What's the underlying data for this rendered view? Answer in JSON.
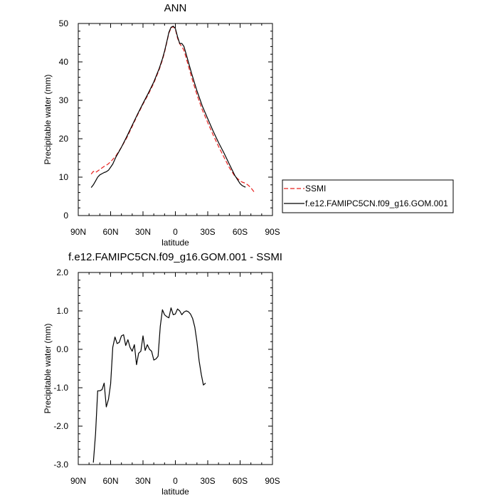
{
  "chart_data": [
    {
      "type": "line",
      "title": "ANN",
      "xlabel": "latitude",
      "ylabel": "Precipitable water (mm)",
      "xlim": [
        90,
        -90
      ],
      "ylim": [
        0,
        50
      ],
      "x_ticks": [
        90,
        60,
        30,
        0,
        -30,
        -60,
        -90
      ],
      "x_tick_labels": [
        "90N",
        "60N",
        "30N",
        "0",
        "30S",
        "60S",
        "90S"
      ],
      "y_ticks": [
        0,
        10,
        20,
        30,
        40,
        50
      ],
      "y_tick_labels": [
        "0",
        "10",
        "20",
        "30",
        "40",
        "50"
      ],
      "grid": false,
      "legend": {
        "placement": "right"
      },
      "series": [
        {
          "name": "SSMI",
          "color": "#e8201e",
          "dash": "dashed",
          "points": [
            [
              78,
              10.8
            ],
            [
              76,
              11.5
            ],
            [
              74,
              11.2
            ],
            [
              72,
              11.6
            ],
            [
              70,
              12.0
            ],
            [
              68,
              12.4
            ],
            [
              66,
              12.8
            ],
            [
              64,
              13.1
            ],
            [
              62,
              13.5
            ],
            [
              60,
              14.0
            ],
            [
              55,
              15.6
            ],
            [
              50,
              17.8
            ],
            [
              45,
              20.3
            ],
            [
              40,
              23.2
            ],
            [
              35,
              26.2
            ],
            [
              30,
              29.0
            ],
            [
              25,
              31.6
            ],
            [
              20,
              34.5
            ],
            [
              15,
              38.0
            ],
            [
              12,
              40.5
            ],
            [
              10,
              42.5
            ],
            [
              8,
              45.0
            ],
            [
              6,
              47.5
            ],
            [
              4,
              48.8
            ],
            [
              2,
              49.2
            ],
            [
              0,
              48.5
            ],
            [
              -2,
              46.2
            ],
            [
              -4,
              44.7
            ],
            [
              -6,
              44.0
            ],
            [
              -8,
              43.0
            ],
            [
              -10,
              41.0
            ],
            [
              -15,
              36.0
            ],
            [
              -20,
              31.5
            ],
            [
              -25,
              27.5
            ],
            [
              -30,
              24.2
            ],
            [
              -35,
              21.0
            ],
            [
              -40,
              18.0
            ],
            [
              -45,
              15.2
            ],
            [
              -50,
              12.5
            ],
            [
              -55,
              10.3
            ],
            [
              -60,
              9.0
            ],
            [
              -62,
              8.7
            ],
            [
              -65,
              8.4
            ],
            [
              -68,
              7.8
            ],
            [
              -70,
              7.2
            ],
            [
              -72,
              6.5
            ],
            [
              -74,
              5.8
            ]
          ]
        },
        {
          "name": "f.e12.FAMIPC5CN.f09_g16.GOM.001",
          "color": "#000000",
          "dash": "solid",
          "points": [
            [
              78,
              7.3
            ],
            [
              76,
              8.0
            ],
            [
              74,
              9.0
            ],
            [
              72,
              10.0
            ],
            [
              70,
              10.6
            ],
            [
              68,
              10.9
            ],
            [
              66,
              11.2
            ],
            [
              64,
              11.4
            ],
            [
              62,
              11.8
            ],
            [
              60,
              12.6
            ],
            [
              58,
              13.4
            ],
            [
              55,
              15.3
            ],
            [
              50,
              17.8
            ],
            [
              45,
              20.6
            ],
            [
              40,
              23.5
            ],
            [
              35,
              26.4
            ],
            [
              30,
              29.2
            ],
            [
              25,
              31.9
            ],
            [
              20,
              34.8
            ],
            [
              15,
              38.3
            ],
            [
              12,
              40.8
            ],
            [
              10,
              42.8
            ],
            [
              8,
              45.2
            ],
            [
              6,
              47.7
            ],
            [
              4,
              49.0
            ],
            [
              2,
              49.3
            ],
            [
              0,
              48.7
            ],
            [
              -2,
              46.6
            ],
            [
              -4,
              44.8
            ],
            [
              -6,
              44.8
            ],
            [
              -8,
              44.0
            ],
            [
              -10,
              42.0
            ],
            [
              -15,
              37.0
            ],
            [
              -20,
              32.5
            ],
            [
              -25,
              28.5
            ],
            [
              -30,
              25.2
            ],
            [
              -35,
              22.0
            ],
            [
              -40,
              19.0
            ],
            [
              -45,
              16.3
            ],
            [
              -50,
              13.4
            ],
            [
              -55,
              10.5
            ],
            [
              -60,
              8.3
            ],
            [
              -62,
              7.8
            ],
            [
              -64,
              7.5
            ],
            [
              -65,
              7.4
            ]
          ]
        }
      ]
    },
    {
      "type": "line",
      "title": "f.e12.FAMIPC5CN.f09_g16.GOM.001 - SSMI",
      "xlabel": "latitude",
      "ylabel": "Precipitable water (mm)",
      "xlim": [
        90,
        -90
      ],
      "ylim": [
        -3,
        2
      ],
      "x_ticks": [
        90,
        60,
        30,
        0,
        -30,
        -60,
        -90
      ],
      "x_tick_labels": [
        "90N",
        "60N",
        "30N",
        "0",
        "30S",
        "60S",
        "90S"
      ],
      "y_ticks": [
        -3,
        -2,
        -1,
        0,
        1,
        2
      ],
      "y_tick_labels": [
        "-3.0",
        "-2.0",
        "-1.0",
        "0.0",
        "1.0",
        "2.0"
      ],
      "grid": false,
      "series": [
        {
          "color": "#000000",
          "dash": "solid",
          "points": [
            [
              76,
              -2.95
            ],
            [
              74,
              -2.2
            ],
            [
              72,
              -1.08
            ],
            [
              70,
              -1.08
            ],
            [
              68,
              -1.05
            ],
            [
              66,
              -0.88
            ],
            [
              64,
              -1.5
            ],
            [
              62,
              -1.3
            ],
            [
              60,
              -0.9
            ],
            [
              58,
              0.05
            ],
            [
              56,
              0.32
            ],
            [
              54,
              0.15
            ],
            [
              52,
              0.18
            ],
            [
              50,
              0.35
            ],
            [
              48,
              0.38
            ],
            [
              46,
              0.1
            ],
            [
              44,
              0.25
            ],
            [
              42,
              0.05
            ],
            [
              40,
              -0.05
            ],
            [
              38,
              0.12
            ],
            [
              36,
              -0.4
            ],
            [
              34,
              -0.1
            ],
            [
              32,
              -0.05
            ],
            [
              30,
              0.35
            ],
            [
              28,
              -0.03
            ],
            [
              26,
              0.12
            ],
            [
              24,
              0.0
            ],
            [
              22,
              -0.05
            ],
            [
              20,
              -0.28
            ],
            [
              18,
              -0.25
            ],
            [
              16,
              -0.18
            ],
            [
              14,
              0.6
            ],
            [
              12,
              1.03
            ],
            [
              10,
              0.9
            ],
            [
              8,
              0.85
            ],
            [
              6,
              0.82
            ],
            [
              4,
              1.08
            ],
            [
              2,
              0.9
            ],
            [
              0,
              0.92
            ],
            [
              -2,
              1.05
            ],
            [
              -4,
              1.0
            ],
            [
              -6,
              0.9
            ],
            [
              -8,
              0.97
            ],
            [
              -10,
              1.0
            ],
            [
              -12,
              0.98
            ],
            [
              -14,
              0.92
            ],
            [
              -16,
              0.8
            ],
            [
              -18,
              0.58
            ],
            [
              -20,
              0.2
            ],
            [
              -22,
              -0.3
            ],
            [
              -24,
              -0.65
            ],
            [
              -26,
              -0.93
            ],
            [
              -28,
              -0.88
            ]
          ]
        }
      ]
    }
  ]
}
